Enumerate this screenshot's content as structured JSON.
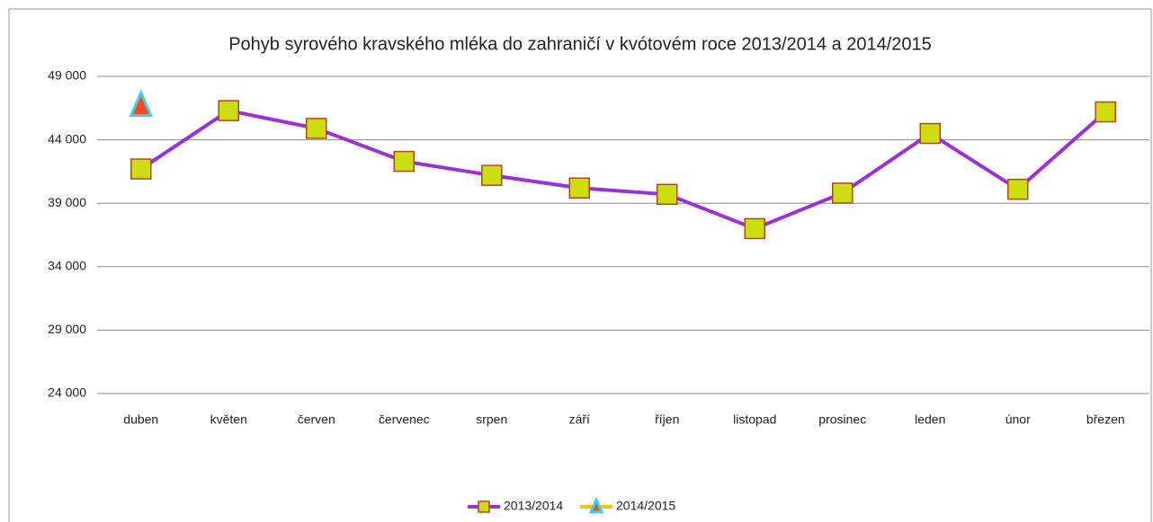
{
  "chart_data": {
    "type": "line",
    "title": "Pohyb syrového kravského mléka do zahraničí v kvótovém roce 2013/2014 a 2014/2015",
    "categories": [
      "duben",
      "květen",
      "červen",
      "červenec",
      "srpen",
      "září",
      "říjen",
      "listopad",
      "prosinec",
      "leden",
      "únor",
      "březen"
    ],
    "series": [
      {
        "name": "2013/2014",
        "color": "#9b30d9",
        "marker_color": "#ccdd11",
        "marker": "square",
        "values": [
          41700,
          46300,
          44900,
          42300,
          41200,
          40200,
          39700,
          37000,
          39800,
          44500,
          40100,
          46200
        ]
      },
      {
        "name": "2014/2015",
        "color": "#ffc000",
        "marker_color": "#ff4a1a",
        "marker": "triangle",
        "values": [
          46700,
          null,
          null,
          null,
          null,
          null,
          null,
          null,
          null,
          null,
          null,
          null
        ]
      }
    ],
    "ylim": [
      24000,
      49000
    ],
    "yticks": [
      {
        "value": 24000,
        "label": "24 000"
      },
      {
        "value": 29000,
        "label": "29 000"
      },
      {
        "value": 34000,
        "label": "34 000"
      },
      {
        "value": 39000,
        "label": "39 000"
      },
      {
        "value": 44000,
        "label": "44 000"
      },
      {
        "value": 49000,
        "label": "49 000"
      }
    ],
    "grid": true,
    "legend": "bottom"
  }
}
